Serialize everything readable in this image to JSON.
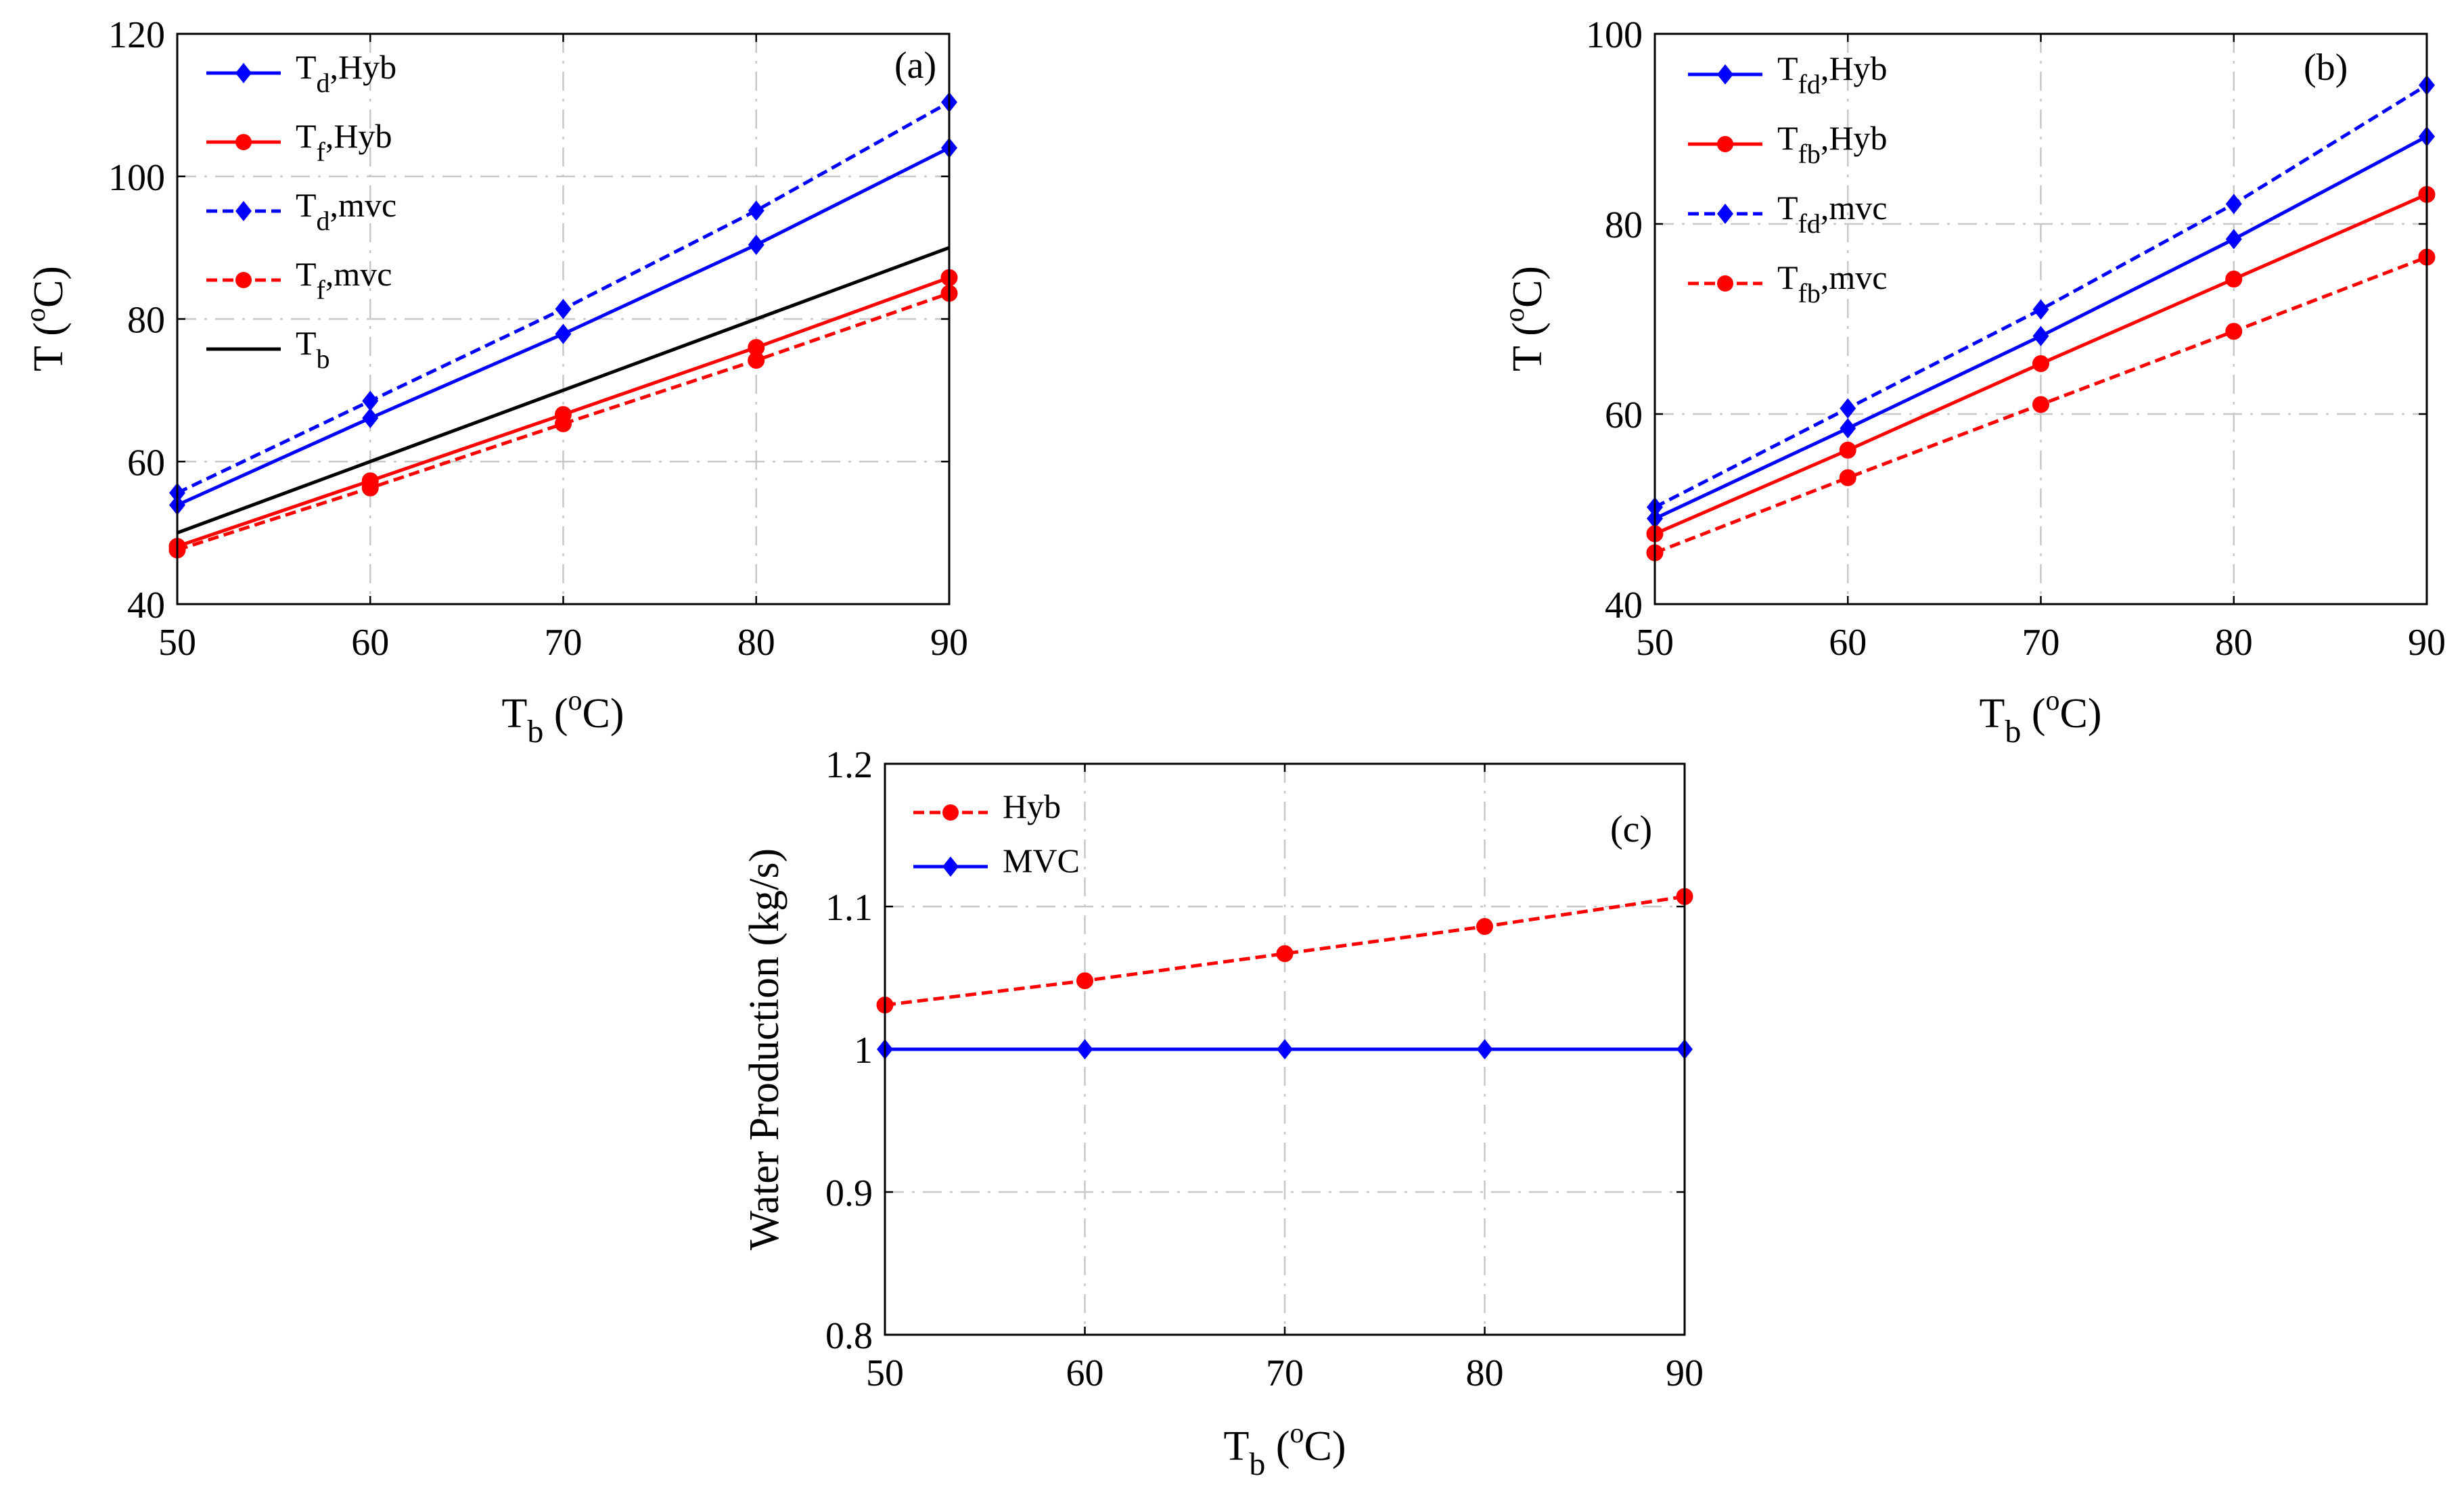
{
  "chart_data": [
    {
      "type": "line",
      "panel_label": "(a)",
      "xlabel": {
        "main": "T",
        "sub": "b",
        "unit_pre": " (",
        "unit_sup": "o",
        "unit_post": "C)"
      },
      "ylabel": {
        "main": "T",
        "unit_pre": " (",
        "unit_sup": "o",
        "unit_post": "C)"
      },
      "xlim": [
        50,
        90
      ],
      "ylim": [
        40,
        120
      ],
      "xticks": [
        "50",
        "60",
        "70",
        "80",
        "90"
      ],
      "yticks": [
        "40",
        "60",
        "80",
        "100",
        "120"
      ],
      "grid": true,
      "legend_position": "top-left",
      "x": [
        50,
        60,
        70,
        80,
        90
      ],
      "series": [
        {
          "name": "T_d,Hyb",
          "legend_main": "T",
          "legend_sub": "d",
          "legend_rest": ",Hyb",
          "color": "#0000ff",
          "dash": "solid",
          "marker": "diamond",
          "values": [
            53.9,
            66.1,
            77.9,
            90.4,
            104.0
          ]
        },
        {
          "name": "T_f,Hyb",
          "legend_main": "T",
          "legend_sub": "f",
          "legend_rest": ",Hyb",
          "color": "#ff0000",
          "dash": "solid",
          "marker": "circle",
          "values": [
            48.1,
            57.3,
            66.6,
            76.0,
            85.8
          ]
        },
        {
          "name": "T_d,mvc",
          "legend_main": "T",
          "legend_sub": "d",
          "legend_rest": ",mvc",
          "color": "#0000ff",
          "dash": "dashed",
          "marker": "diamond",
          "values": [
            55.6,
            68.5,
            81.4,
            95.2,
            110.4
          ]
        },
        {
          "name": "T_f,mvc",
          "legend_main": "T",
          "legend_sub": "f",
          "legend_rest": ",mvc",
          "color": "#ff0000",
          "dash": "dashed",
          "marker": "circle",
          "values": [
            47.6,
            56.3,
            65.3,
            74.2,
            83.6
          ]
        },
        {
          "name": "T_b",
          "legend_main": "T",
          "legend_sub": "b",
          "legend_rest": "",
          "color": "#000000",
          "dash": "solid",
          "marker": "none",
          "values": [
            50,
            60,
            70,
            80,
            90
          ]
        }
      ]
    },
    {
      "type": "line",
      "panel_label": "(b)",
      "xlabel": {
        "main": "T",
        "sub": "b",
        "unit_pre": " (",
        "unit_sup": "o",
        "unit_post": "C)"
      },
      "ylabel": {
        "main": "T",
        "unit_pre": " (",
        "unit_sup": "o",
        "unit_post": "C)"
      },
      "xlim": [
        50,
        90
      ],
      "ylim": [
        40,
        100
      ],
      "xticks": [
        "50",
        "60",
        "70",
        "80",
        "90"
      ],
      "yticks": [
        "40",
        "60",
        "80",
        "100"
      ],
      "grid": true,
      "legend_position": "top-left",
      "x": [
        50,
        60,
        70,
        80,
        90
      ],
      "series": [
        {
          "name": "T_fd,Hyb",
          "legend_main": "T",
          "legend_sub": "fd",
          "legend_rest": ",Hyb",
          "color": "#0000ff",
          "dash": "solid",
          "marker": "diamond",
          "values": [
            49.0,
            58.5,
            68.2,
            78.4,
            89.2
          ]
        },
        {
          "name": "T_fb,Hyb",
          "legend_main": "T",
          "legend_sub": "fb",
          "legend_rest": ",Hyb",
          "color": "#ff0000",
          "dash": "solid",
          "marker": "circle",
          "values": [
            47.4,
            56.2,
            65.3,
            74.2,
            83.1
          ]
        },
        {
          "name": "T_fd,mvc",
          "legend_main": "T",
          "legend_sub": "fd",
          "legend_rest": ",mvc",
          "color": "#0000ff",
          "dash": "dashed",
          "marker": "diamond",
          "values": [
            50.2,
            60.6,
            71.0,
            82.1,
            94.6
          ]
        },
        {
          "name": "T_fb,mvc",
          "legend_main": "T",
          "legend_sub": "fb",
          "legend_rest": ",mvc",
          "color": "#ff0000",
          "dash": "dashed",
          "marker": "circle",
          "values": [
            45.4,
            53.3,
            61.0,
            68.7,
            76.5
          ]
        }
      ]
    },
    {
      "type": "line",
      "panel_label": "(c)",
      "xlabel": {
        "main": "T",
        "sub": "b",
        "unit_pre": " (",
        "unit_sup": "o",
        "unit_post": "C)"
      },
      "ylabel": {
        "text": "Water Production (kg/s)"
      },
      "xlim": [
        50,
        90
      ],
      "ylim": [
        0.8,
        1.2
      ],
      "xticks": [
        "50",
        "60",
        "70",
        "80",
        "90"
      ],
      "yticks": [
        "0.8",
        "0.9",
        "1",
        "1.1",
        "1.2"
      ],
      "grid": true,
      "legend_position": "top-left",
      "x": [
        50,
        60,
        70,
        80,
        90
      ],
      "series": [
        {
          "name": "Hyb",
          "legend_main": "Hyb",
          "legend_sub": "",
          "legend_rest": "",
          "color": "#ff0000",
          "dash": "dashed",
          "marker": "circle",
          "values": [
            1.031,
            1.048,
            1.067,
            1.086,
            1.107
          ]
        },
        {
          "name": "MVC",
          "legend_main": "MVC",
          "legend_sub": "",
          "legend_rest": "",
          "color": "#0000ff",
          "dash": "solid",
          "marker": "diamond",
          "values": [
            1.0,
            1.0,
            1.0,
            1.0,
            1.0
          ]
        }
      ]
    }
  ]
}
